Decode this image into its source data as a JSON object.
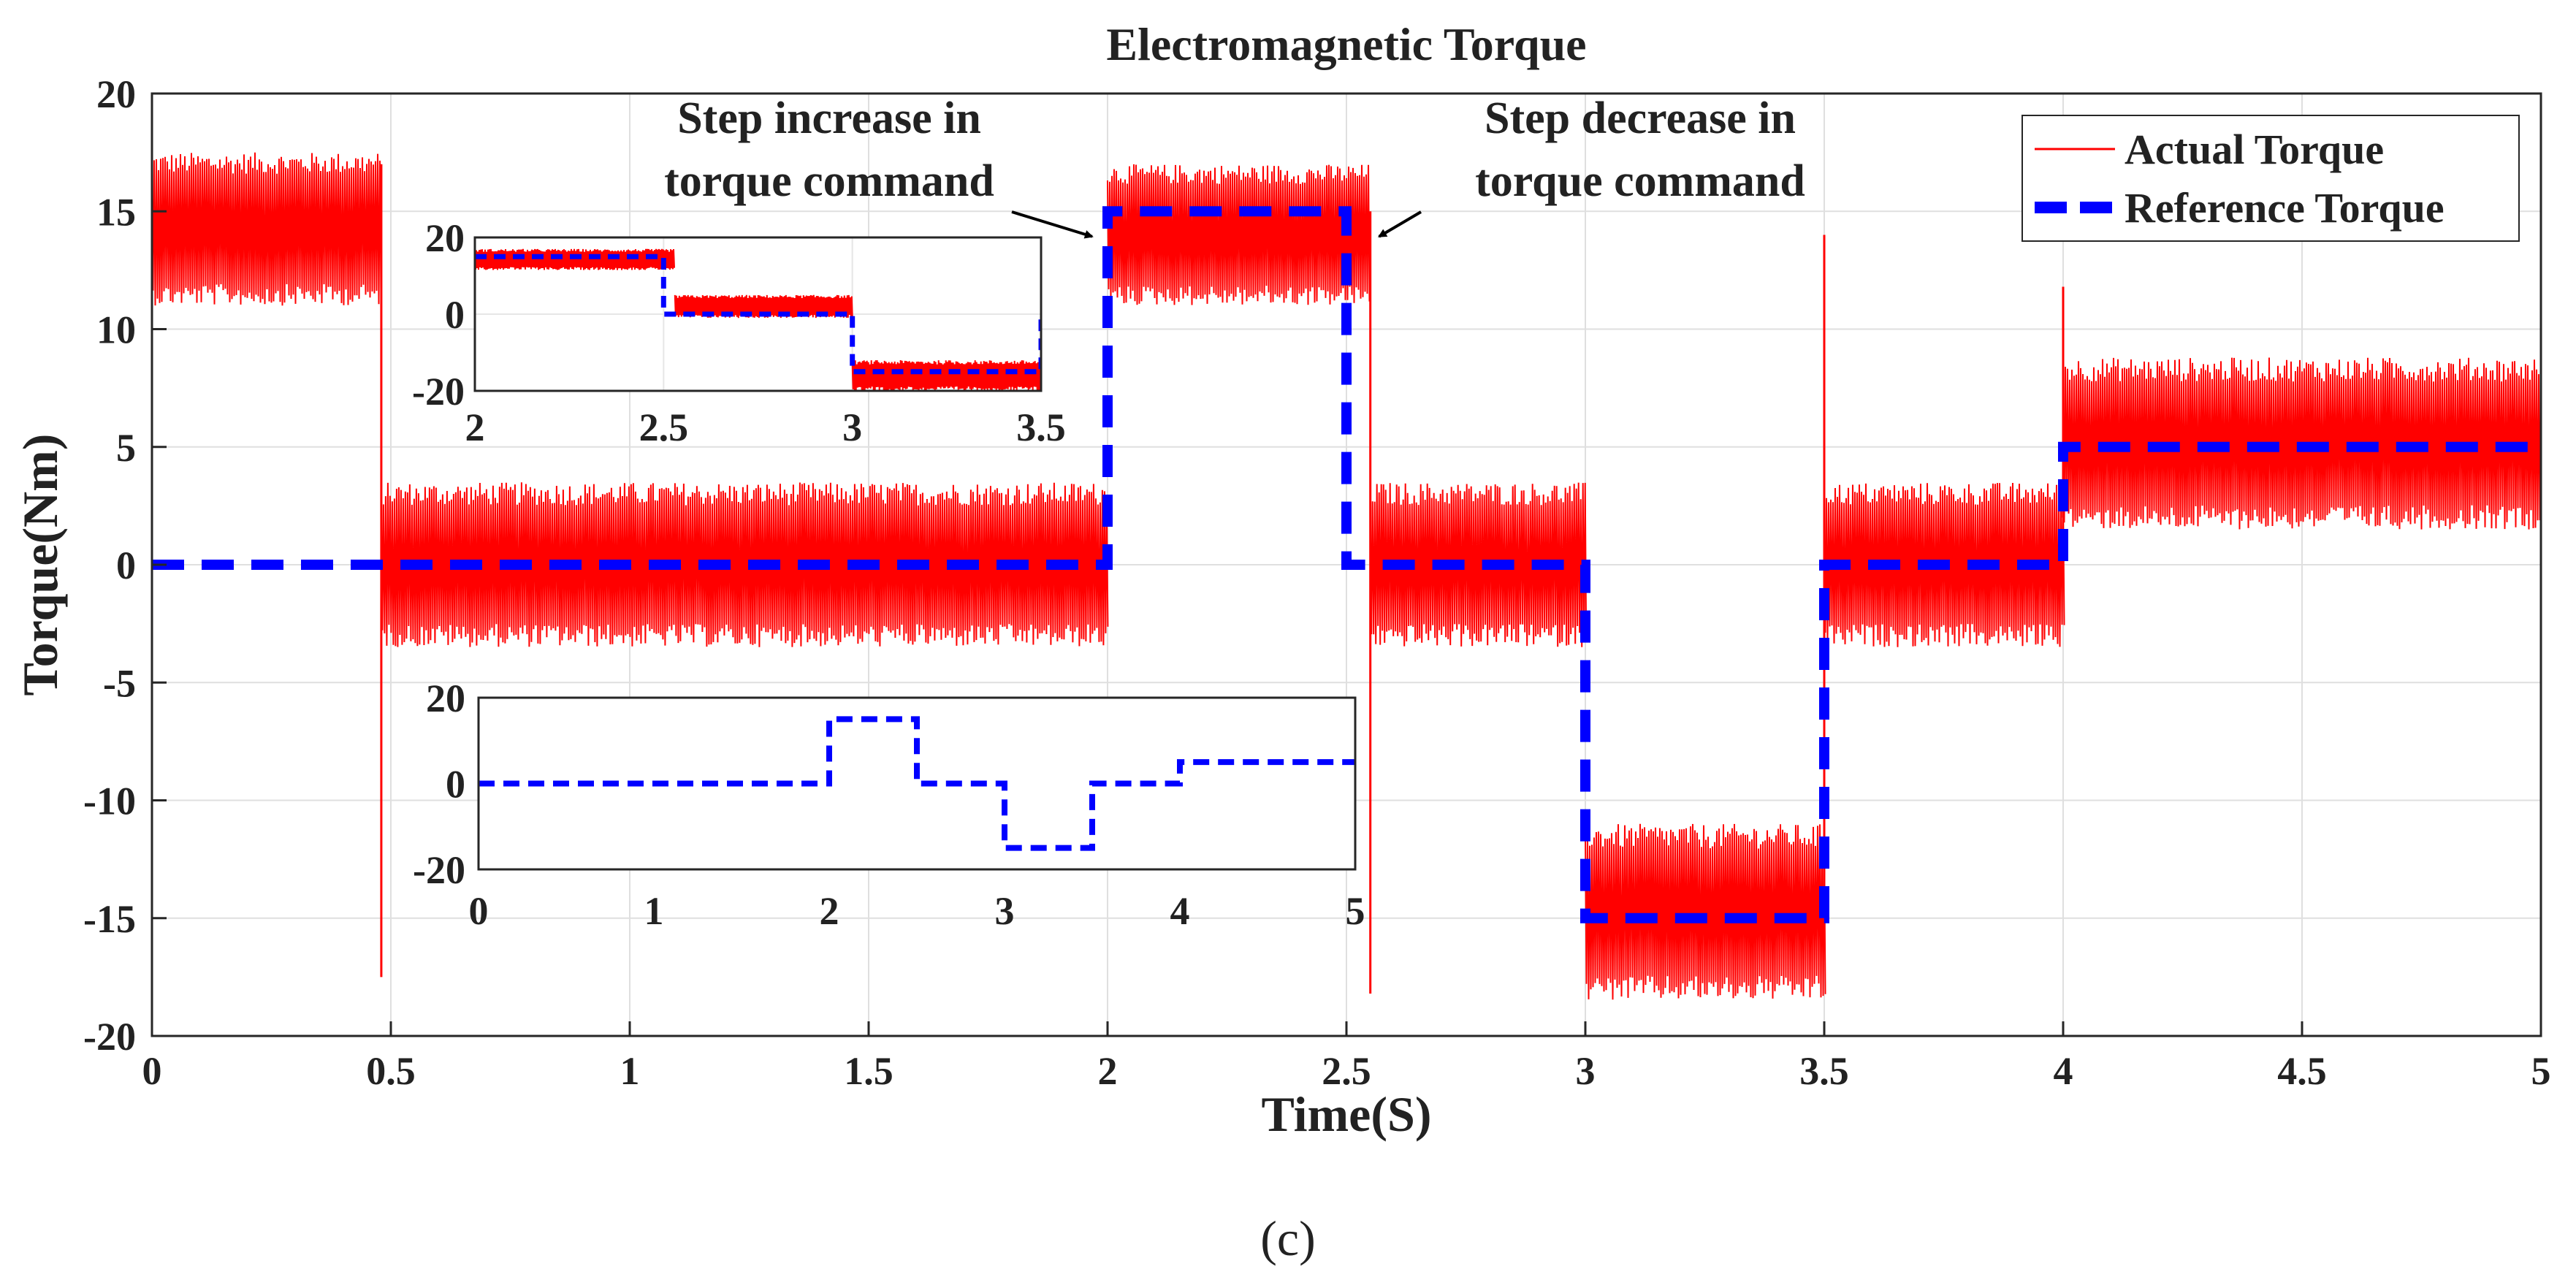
{
  "chart_data": [
    {
      "id": "main",
      "type": "line",
      "title": "Electromagnetic Torque",
      "xlabel": "Time(S)",
      "ylabel": "Torque(Nm)",
      "xlim": [
        0,
        5
      ],
      "ylim": [
        -20,
        20
      ],
      "xticks": [
        0,
        0.5,
        1,
        1.5,
        2,
        2.5,
        3,
        3.5,
        4,
        4.5,
        5
      ],
      "xtick_labels": [
        "0",
        "0.5",
        "1",
        "1.5",
        "2",
        "2.5",
        "3",
        "3.5",
        "4",
        "4.5",
        "5"
      ],
      "yticks": [
        20,
        15,
        10,
        5,
        0,
        -5,
        -10,
        -15,
        -20
      ],
      "ytick_labels": [
        "20",
        "15",
        "10",
        "5",
        "0",
        "-5",
        "-10",
        "-15",
        "-20"
      ],
      "grid": true,
      "legend": {
        "location": "top-right",
        "entries": [
          "Actual Torque",
          "Reference Torque"
        ]
      },
      "series": [
        {
          "name": "Actual Torque",
          "color": "#ff0000",
          "style": "solid-noisy-band",
          "segments": [
            {
              "t0": 0.0,
              "t1": 0.48,
              "low": 11.0,
              "high": 17.5
            },
            {
              "t0": 0.48,
              "t1": 2.0,
              "low": -3.5,
              "high": 3.5
            },
            {
              "t0": 2.0,
              "t1": 2.55,
              "low": 11.0,
              "high": 17.0
            },
            {
              "t0": 2.55,
              "t1": 3.0,
              "low": -3.5,
              "high": 3.5
            },
            {
              "t0": 3.0,
              "t1": 3.5,
              "low": -18.5,
              "high": -11.0
            },
            {
              "t0": 3.5,
              "t1": 4.0,
              "low": -3.5,
              "high": 3.5
            },
            {
              "t0": 4.0,
              "t1": 5.0,
              "low": 1.5,
              "high": 8.8
            }
          ],
          "spikes": [
            {
              "t": 0.48,
              "low": -17.5,
              "high": 17.0
            },
            {
              "t": 2.55,
              "low": -18.2,
              "high": 15.0
            },
            {
              "t": 3.5,
              "low": -15.0,
              "high": 14.0
            },
            {
              "t": 4.0,
              "low": 2.0,
              "high": 11.8
            }
          ]
        },
        {
          "name": "Reference Torque",
          "color": "#0000ff",
          "style": "dashed",
          "x": [
            0,
            2.0,
            2.0,
            2.5,
            2.5,
            3.0,
            3.0,
            3.5,
            3.5,
            4.0,
            4.0,
            5.0
          ],
          "y": [
            0,
            0,
            15,
            15,
            0,
            0,
            -15,
            -15,
            0,
            0,
            5,
            5
          ]
        }
      ],
      "annotations": [
        {
          "lines": [
            "Step increase in",
            "torque command"
          ],
          "arrow_to": {
            "x": 1.98,
            "y": 13.0
          }
        },
        {
          "lines": [
            "Step decrease in",
            "torque command"
          ],
          "arrow_to": {
            "x": 2.55,
            "y": 13.0
          }
        }
      ]
    },
    {
      "id": "inset-top",
      "type": "line",
      "xlim": [
        2,
        3.5
      ],
      "ylim": [
        -20,
        20
      ],
      "xticks": [
        2,
        2.5,
        3,
        3.5
      ],
      "xtick_labels": [
        "2",
        "2.5",
        "3",
        "3.5"
      ],
      "yticks": [
        20,
        0,
        -20
      ],
      "ytick_labels": [
        "20",
        "0",
        "-20"
      ],
      "series": [
        {
          "name": "Actual Torque",
          "color": "#ff0000",
          "segments": [
            {
              "t0": 2.0,
              "t1": 2.53,
              "low": 11.5,
              "high": 17.0
            },
            {
              "t0": 2.53,
              "t1": 3.0,
              "low": -1.0,
              "high": 5.0
            },
            {
              "t0": 3.0,
              "t1": 3.5,
              "low": -20.0,
              "high": -12.0
            }
          ]
        },
        {
          "name": "Reference Torque",
          "color": "#0000ff",
          "x": [
            2.0,
            2.5,
            2.5,
            3.0,
            3.0,
            3.5,
            3.5
          ],
          "y": [
            15,
            15,
            0,
            0,
            -15,
            -15,
            0
          ]
        }
      ]
    },
    {
      "id": "inset-bottom",
      "type": "line",
      "xlim": [
        0,
        5
      ],
      "ylim": [
        -20,
        20
      ],
      "xticks": [
        0,
        1,
        2,
        3,
        4,
        5
      ],
      "xtick_labels": [
        "0",
        "1",
        "2",
        "3",
        "4",
        "5"
      ],
      "yticks": [
        20,
        0,
        -20
      ],
      "ytick_labels": [
        "20",
        "0",
        "-20"
      ],
      "series": [
        {
          "name": "Reference Torque",
          "color": "#0000ff",
          "x": [
            0,
            2.0,
            2.0,
            2.5,
            2.5,
            3.0,
            3.0,
            3.5,
            3.5,
            4.0,
            4.0,
            5.0
          ],
          "y": [
            0,
            0,
            15,
            15,
            0,
            0,
            -15,
            -15,
            0,
            0,
            5,
            5
          ]
        }
      ]
    }
  ],
  "caption": "(c)"
}
